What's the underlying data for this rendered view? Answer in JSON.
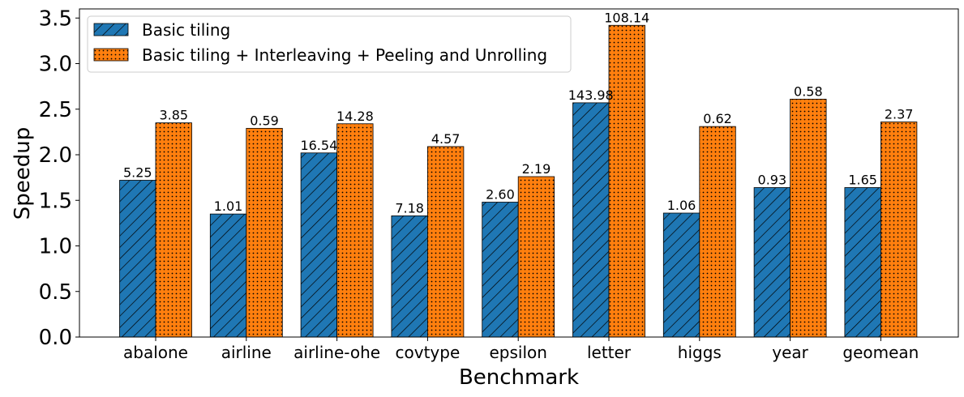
{
  "chart_data": {
    "type": "bar",
    "title": "",
    "xlabel": "Benchmark",
    "ylabel": "Speedup",
    "ylim": [
      0,
      3.6
    ],
    "yticks": [
      "0.0",
      "0.5",
      "1.0",
      "1.5",
      "2.0",
      "2.5",
      "3.0",
      "3.5"
    ],
    "grid": false,
    "legend_position": "top-left",
    "categories": [
      "abalone",
      "airline",
      "airline-ohe",
      "covtype",
      "epsilon",
      "letter",
      "higgs",
      "year",
      "geomean"
    ],
    "series": [
      {
        "name": "Basic tiling",
        "color": "#1f77b4",
        "pattern": "diagonal-hatch",
        "values": [
          1.72,
          1.35,
          2.02,
          1.33,
          1.48,
          2.57,
          1.36,
          1.64,
          1.64
        ],
        "labels": [
          "5.25",
          "1.01",
          "16.54",
          "7.18",
          "2.60",
          "143.98",
          "1.06",
          "0.93",
          "1.65"
        ]
      },
      {
        "name": "Basic tiling + Interleaving + Peeling and Unrolling",
        "color": "#ff7f0e",
        "pattern": "dots",
        "values": [
          2.35,
          2.29,
          2.34,
          2.09,
          1.76,
          3.42,
          2.31,
          2.61,
          2.36
        ],
        "labels": [
          "3.85",
          "0.59",
          "14.28",
          "4.57",
          "2.19",
          "108.14",
          "0.62",
          "0.58",
          "2.37"
        ]
      }
    ]
  }
}
